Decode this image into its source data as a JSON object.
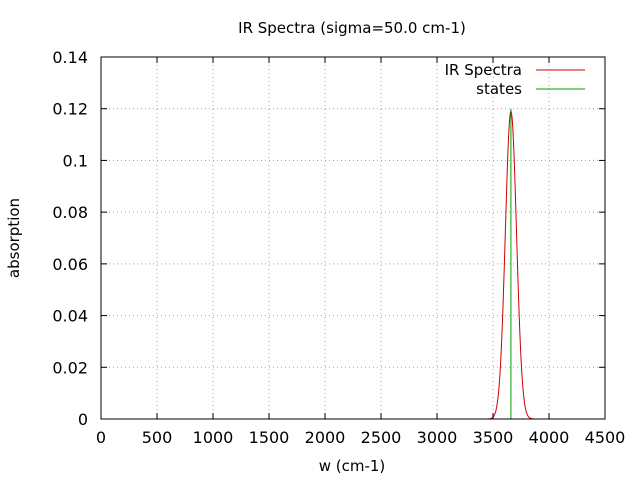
{
  "chart_data": {
    "type": "line",
    "title": "IR Spectra (sigma=50.0 cm-1)",
    "xlabel": "w (cm-1)",
    "ylabel": "absorption",
    "xlim": [
      0,
      4500
    ],
    "ylim": [
      0,
      0.14
    ],
    "xticks": [
      0,
      500,
      1000,
      1500,
      2000,
      2500,
      3000,
      3500,
      4000,
      4500
    ],
    "xtick_labels": [
      "0",
      "500",
      "1000",
      "1500",
      "2000",
      "2500",
      "3000",
      "3500",
      "4000",
      "4500"
    ],
    "yticks": [
      0,
      0.02,
      0.04,
      0.06,
      0.08,
      0.1,
      0.12,
      0.14
    ],
    "ytick_labels": [
      "0",
      "0.02",
      "0.04",
      "0.06",
      "0.08",
      "0.1",
      "0.12",
      "0.14"
    ],
    "grid": true,
    "legend_position": "top-right",
    "series": [
      {
        "name": "IR Spectra",
        "kind": "gaussian",
        "color": "#cc0000",
        "center": 3660,
        "peak": 0.119,
        "sigma": 50.0,
        "x_range": [
          3450,
          3870
        ]
      },
      {
        "name": "states",
        "kind": "stick",
        "color": "#00a000",
        "x": [
          3660
        ],
        "y": [
          0.12
        ]
      }
    ]
  }
}
